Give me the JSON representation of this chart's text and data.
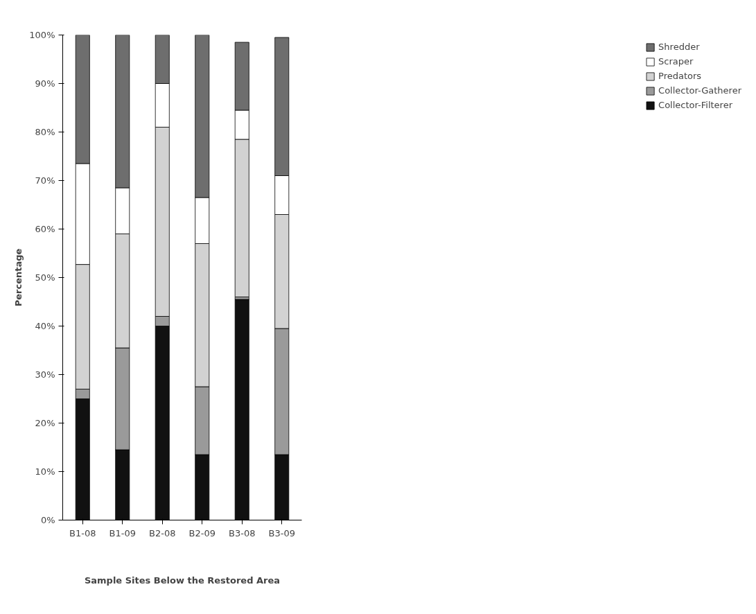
{
  "chart_data": {
    "type": "bar",
    "stacked": true,
    "xlabel": "Sample Sites Below the Restored Area",
    "ylabel": "Percentage",
    "categories": [
      "B1-08",
      "B1-09",
      "B2-08",
      "B2-09",
      "B3-08",
      "B3-09"
    ],
    "series": [
      {
        "name": "Collector-Filterer",
        "color": "#111111",
        "values": [
          25,
          14.5,
          40,
          13.5,
          45.5,
          13.5
        ]
      },
      {
        "name": "Collector-Gatherer",
        "color": "#9a9a9a",
        "values": [
          2,
          21,
          2,
          14,
          0.5,
          26
        ]
      },
      {
        "name": "Predators",
        "color": "#d2d2d2",
        "values": [
          25.7,
          23.5,
          39,
          29.5,
          32.5,
          23.5
        ]
      },
      {
        "name": "Scraper",
        "color": "#ffffff",
        "values": [
          20.8,
          9.5,
          9,
          9.5,
          6,
          8
        ]
      },
      {
        "name": "Shredder",
        "color": "#6e6e6e",
        "values": [
          26.5,
          31.5,
          10,
          33.5,
          14,
          28.5
        ]
      }
    ],
    "ylim": [
      0,
      100
    ],
    "yticks": [
      {
        "value": 0,
        "label": "0%"
      },
      {
        "value": 10,
        "label": "10%"
      },
      {
        "value": 20,
        "label": "20%"
      },
      {
        "value": 30,
        "label": "30%"
      },
      {
        "value": 40,
        "label": "40%"
      },
      {
        "value": 50,
        "label": "50%"
      },
      {
        "value": 60,
        "label": "60%"
      },
      {
        "value": 70,
        "label": "70%"
      },
      {
        "value": 80,
        "label": "80%"
      },
      {
        "value": 90,
        "label": "90%"
      },
      {
        "value": 100,
        "label": "100%"
      }
    ],
    "legend": "right",
    "grid": false
  }
}
